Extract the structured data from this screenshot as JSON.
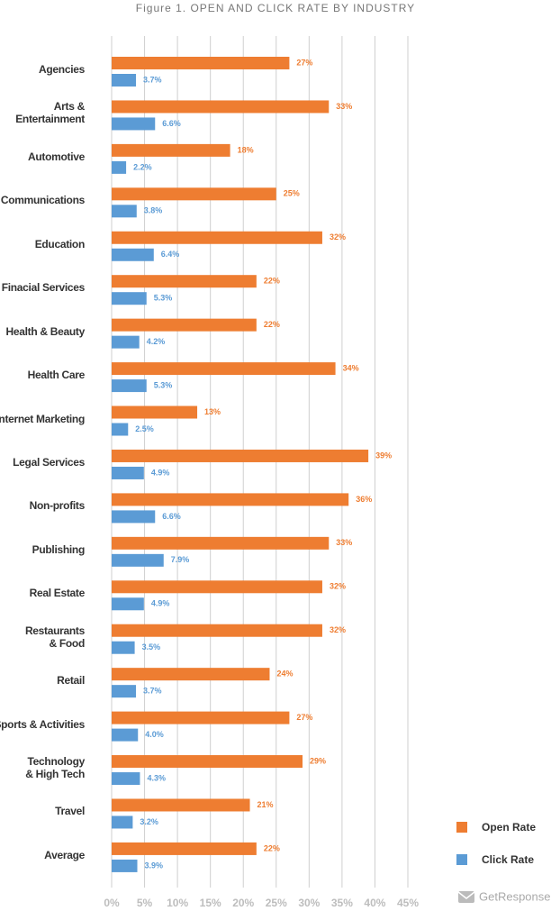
{
  "chart_data": {
    "type": "hbar",
    "title": "Figure 1. OPEN AND CLICK RATE BY INDUSTRY",
    "categories": [
      "Agencies",
      "Arts &\nEntertainment",
      "Automotive",
      "Communications",
      "Education",
      "Finacial Services",
      "Health & Beauty",
      "Health Care",
      "Internet Marketing",
      "Legal Services",
      "Non-profits",
      "Publishing",
      "Real Estate",
      "Restaurants\n& Food",
      "Retail",
      "Sports & Activities",
      "Technology\n& High Tech",
      "Travel",
      "Average"
    ],
    "series": [
      {
        "name": "Open Rate",
        "color": "#ee7d31",
        "values": [
          27,
          33,
          18,
          25,
          32,
          22,
          22,
          34,
          13,
          39,
          36,
          33,
          32,
          32,
          24,
          27,
          29,
          21,
          22
        ],
        "value_labels": [
          "27%",
          "33%",
          "18%",
          "25%",
          "32%",
          "22%",
          "22%",
          "34%",
          "13%",
          "39%",
          "36%",
          "33%",
          "32%",
          "32%",
          "24%",
          "27%",
          "29%",
          "21%",
          "22%"
        ]
      },
      {
        "name": "Click Rate",
        "color": "#5b9bd5",
        "values": [
          3.7,
          6.6,
          2.2,
          3.8,
          6.4,
          5.3,
          4.2,
          5.3,
          2.5,
          4.9,
          6.6,
          7.9,
          4.9,
          3.5,
          3.7,
          4.0,
          4.3,
          3.2,
          3.9
        ],
        "value_labels": [
          "3.7%",
          "6.6%",
          "2.2%",
          "3.8%",
          "6.4%",
          "5.3%",
          "4.2%",
          "5.3%",
          "2.5%",
          "4.9%",
          "6.6%",
          "7.9%",
          "4.9%",
          "3.5%",
          "3.7%",
          "4.0%",
          "4.3%",
          "3.2%",
          "3.9%"
        ]
      }
    ],
    "xlim": [
      0,
      45
    ],
    "xticks": [
      {
        "value": 0,
        "label": "0%"
      },
      {
        "value": 5,
        "label": "5%"
      },
      {
        "value": 10,
        "label": "10%"
      },
      {
        "value": 15,
        "label": "15%"
      },
      {
        "value": 20,
        "label": "20%"
      },
      {
        "value": 25,
        "label": "25%"
      },
      {
        "value": 30,
        "label": "30%"
      },
      {
        "value": 35,
        "label": "35%"
      },
      {
        "value": 40,
        "label": "40%"
      },
      {
        "value": 45,
        "label": "45%"
      }
    ],
    "grid": true,
    "legend": "bottom-right",
    "watermark": "GetResponse"
  }
}
